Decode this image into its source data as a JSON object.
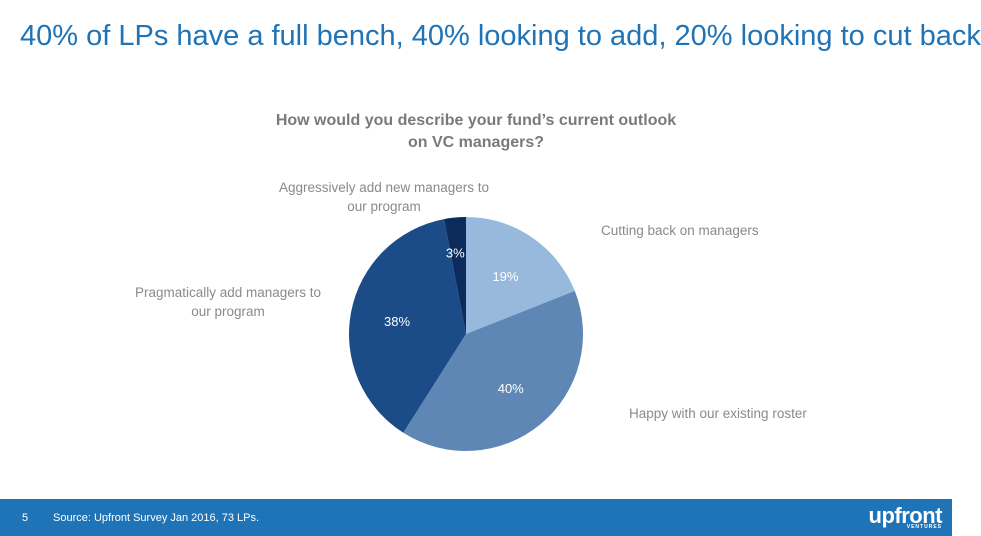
{
  "headline": "40% of LPs have a full bench, 40% looking to add, 20% looking to cut back",
  "chart_data": {
    "type": "pie",
    "title": "How would you describe your fund’s current outlook on VC managers?",
    "title_lines": [
      "How would you describe your fund’s current outlook",
      "on VC managers?"
    ],
    "slices": [
      {
        "label": "Cutting back on managers",
        "value": 19,
        "display": "19%",
        "color": "#97b9db"
      },
      {
        "label": "Happy with our existing roster",
        "value": 40,
        "display": "40%",
        "color": "#5f87b5"
      },
      {
        "label": "Pragmatically add managers to our program",
        "label_lines": [
          "Pragmatically add managers to",
          "our program"
        ],
        "value": 38,
        "display": "38%",
        "color": "#1b4c88"
      },
      {
        "label": "Aggressively add new managers to our program",
        "label_lines": [
          "Aggressively add new managers to",
          "our program"
        ],
        "value": 3,
        "display": "3%",
        "color": "#0b2b5c"
      }
    ],
    "start": "top",
    "direction": "clockwise",
    "legend": "none (callout labels)"
  },
  "footer": {
    "page": "5",
    "source": "Source: Upfront Survey Jan 2016, 73 LPs.",
    "logo": "upfront",
    "logo_sub": "VENTURES",
    "color": "#1f74b8"
  }
}
